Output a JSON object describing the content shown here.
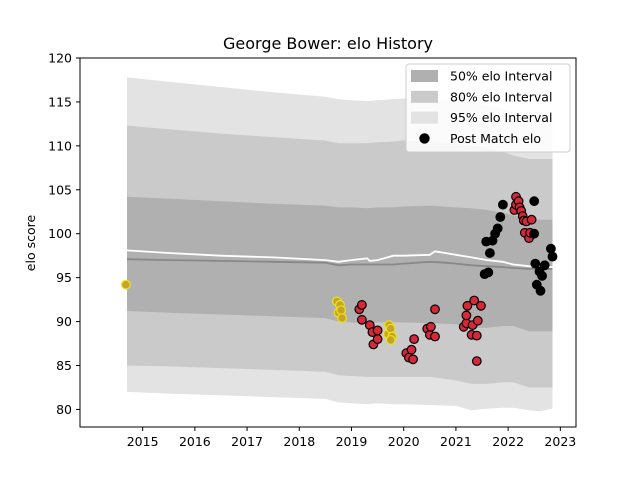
{
  "chart_data": {
    "type": "scatter",
    "title": "George Bower: elo History",
    "xlabel": "",
    "ylabel": "elo score",
    "xlim": [
      2013.8,
      2023.3
    ],
    "ylim": [
      78,
      120
    ],
    "xticks": [
      2015,
      2016,
      2017,
      2018,
      2019,
      2020,
      2021,
      2022,
      2023
    ],
    "yticks": [
      80,
      85,
      90,
      95,
      100,
      105,
      110,
      115,
      120
    ],
    "grid": false,
    "legend": {
      "placement": "top-right",
      "entries": [
        "50% elo Interval",
        "80% elo Interval",
        "95% elo Interval",
        "Post Match elo"
      ]
    },
    "colors": {
      "band50": "#b0b0b0",
      "band80": "#cacaca",
      "band95": "#e3e3e3",
      "median_line": "#888888",
      "mean_line": "#ffffff",
      "point_black": "#000000",
      "point_red": "#d62839",
      "point_yellow": "#c9a227",
      "edge_black": "#000000",
      "edge_yellow": "#e6e61e"
    },
    "series": [
      {
        "name": "50% elo Interval",
        "type": "band",
        "x": [
          2014.7,
          2015.5,
          2016.5,
          2017.5,
          2018.5,
          2018.75,
          2019.0,
          2019.3,
          2019.5,
          2019.8,
          2020.0,
          2020.5,
          2021.0,
          2021.3,
          2021.6,
          2021.9,
          2022.1,
          2022.4,
          2022.6,
          2022.85
        ],
        "lower": [
          91.2,
          91.0,
          90.8,
          90.6,
          90.4,
          90.0,
          89.9,
          89.8,
          89.9,
          89.9,
          89.9,
          89.8,
          89.7,
          89.3,
          89.3,
          89.5,
          89.5,
          88.9,
          88.9,
          88.9
        ],
        "upper": [
          104.2,
          104.0,
          103.7,
          103.4,
          103.2,
          103.0,
          103.0,
          102.9,
          103.0,
          103.0,
          103.1,
          103.2,
          103.0,
          102.9,
          102.7,
          102.4,
          102.1,
          101.6,
          101.6,
          101.6
        ]
      },
      {
        "name": "80% elo Interval",
        "type": "band",
        "x": [
          2014.7,
          2015.5,
          2016.5,
          2017.5,
          2018.5,
          2018.75,
          2019.0,
          2019.3,
          2019.5,
          2019.8,
          2020.0,
          2020.5,
          2021.0,
          2021.3,
          2021.6,
          2021.9,
          2022.1,
          2022.4,
          2022.6,
          2022.85
        ],
        "lower": [
          85.0,
          84.9,
          84.7,
          84.5,
          84.3,
          83.9,
          83.8,
          83.7,
          83.7,
          83.7,
          83.7,
          83.7,
          83.3,
          82.9,
          82.9,
          83.1,
          83.1,
          82.5,
          82.5,
          82.5
        ],
        "upper": [
          112.3,
          111.9,
          111.4,
          111.0,
          110.6,
          110.3,
          110.3,
          110.3,
          110.4,
          110.5,
          110.6,
          110.6,
          110.2,
          110.0,
          109.7,
          109.3,
          108.9,
          108.5,
          108.5,
          108.5
        ]
      },
      {
        "name": "95% elo Interval",
        "type": "band",
        "x": [
          2014.7,
          2015.5,
          2016.5,
          2017.5,
          2018.5,
          2018.75,
          2019.0,
          2019.3,
          2019.5,
          2019.8,
          2020.0,
          2020.5,
          2021.0,
          2021.3,
          2021.6,
          2021.9,
          2022.1,
          2022.4,
          2022.6,
          2022.85
        ],
        "lower": [
          82.0,
          81.8,
          81.6,
          81.4,
          81.2,
          80.8,
          80.7,
          80.6,
          80.7,
          80.6,
          80.6,
          80.5,
          80.4,
          79.9,
          80.1,
          80.2,
          80.2,
          79.9,
          79.8,
          80.1
        ],
        "upper": [
          117.8,
          117.3,
          116.7,
          116.1,
          115.6,
          115.3,
          115.2,
          115.1,
          115.2,
          115.3,
          115.4,
          115.3,
          115.1,
          114.9,
          114.6,
          114.2,
          113.8,
          113.3,
          113.3,
          113.3
        ]
      },
      {
        "name": "Median elo",
        "type": "line",
        "color": "#888888",
        "x": [
          2014.7,
          2015.5,
          2016.5,
          2017.5,
          2018.5,
          2018.75,
          2019.0,
          2019.3,
          2019.5,
          2019.8,
          2020.0,
          2020.5,
          2020.8,
          2021.0,
          2021.3,
          2021.6,
          2021.9,
          2022.1,
          2022.4,
          2022.85
        ],
        "y": [
          97.1,
          97.0,
          96.9,
          96.8,
          96.7,
          96.4,
          96.5,
          96.5,
          96.5,
          96.5,
          96.6,
          96.8,
          96.7,
          96.6,
          96.4,
          96.3,
          96.2,
          96.1,
          96.0,
          96.0
        ]
      },
      {
        "name": "Mean elo",
        "type": "line",
        "color": "#ffffff",
        "x": [
          2014.7,
          2015.5,
          2016.5,
          2017.5,
          2018.5,
          2018.75,
          2019.0,
          2019.3,
          2019.35,
          2019.5,
          2019.8,
          2020.0,
          2020.5,
          2020.6,
          2021.0,
          2021.3,
          2021.6,
          2021.9,
          2022.1,
          2022.4,
          2022.85
        ],
        "y": [
          98.1,
          97.8,
          97.5,
          97.3,
          97.0,
          96.8,
          97.0,
          97.2,
          96.9,
          97.0,
          97.5,
          97.5,
          97.6,
          98.0,
          97.6,
          97.3,
          97.0,
          96.8,
          96.5,
          96.3,
          96.2
        ]
      },
      {
        "name": "Post Match elo",
        "type": "points",
        "points": [
          {
            "x": 2014.68,
            "y": 94.2,
            "c": "yellow"
          },
          {
            "x": 2018.72,
            "y": 92.3,
            "c": "yellow"
          },
          {
            "x": 2018.75,
            "y": 91.0,
            "c": "yellow"
          },
          {
            "x": 2018.78,
            "y": 91.9,
            "c": "yellow"
          },
          {
            "x": 2018.8,
            "y": 91.3,
            "c": "yellow"
          },
          {
            "x": 2018.82,
            "y": 90.4,
            "c": "yellow"
          },
          {
            "x": 2019.15,
            "y": 91.4,
            "c": "red"
          },
          {
            "x": 2019.2,
            "y": 91.9,
            "c": "red"
          },
          {
            "x": 2019.2,
            "y": 90.2,
            "c": "red"
          },
          {
            "x": 2019.35,
            "y": 89.6,
            "c": "red"
          },
          {
            "x": 2019.4,
            "y": 88.8,
            "c": "red"
          },
          {
            "x": 2019.42,
            "y": 87.4,
            "c": "red"
          },
          {
            "x": 2019.5,
            "y": 89.0,
            "c": "red"
          },
          {
            "x": 2019.5,
            "y": 88.0,
            "c": "red"
          },
          {
            "x": 2019.7,
            "y": 88.6,
            "c": "yellow"
          },
          {
            "x": 2019.72,
            "y": 89.6,
            "c": "yellow"
          },
          {
            "x": 2019.75,
            "y": 89.2,
            "c": "yellow"
          },
          {
            "x": 2019.78,
            "y": 88.3,
            "c": "yellow"
          },
          {
            "x": 2019.75,
            "y": 87.9,
            "c": "yellow"
          },
          {
            "x": 2020.05,
            "y": 86.4,
            "c": "red"
          },
          {
            "x": 2020.1,
            "y": 85.9,
            "c": "red"
          },
          {
            "x": 2020.15,
            "y": 86.8,
            "c": "red"
          },
          {
            "x": 2020.18,
            "y": 85.7,
            "c": "red"
          },
          {
            "x": 2020.2,
            "y": 88.0,
            "c": "red"
          },
          {
            "x": 2020.45,
            "y": 89.2,
            "c": "red"
          },
          {
            "x": 2020.5,
            "y": 88.5,
            "c": "red"
          },
          {
            "x": 2020.52,
            "y": 89.4,
            "c": "red"
          },
          {
            "x": 2020.6,
            "y": 91.4,
            "c": "red"
          },
          {
            "x": 2020.6,
            "y": 88.3,
            "c": "red"
          },
          {
            "x": 2021.15,
            "y": 89.4,
            "c": "red"
          },
          {
            "x": 2021.2,
            "y": 89.8,
            "c": "red"
          },
          {
            "x": 2021.2,
            "y": 90.7,
            "c": "red"
          },
          {
            "x": 2021.22,
            "y": 91.8,
            "c": "red"
          },
          {
            "x": 2021.3,
            "y": 88.5,
            "c": "red"
          },
          {
            "x": 2021.32,
            "y": 89.6,
            "c": "red"
          },
          {
            "x": 2021.35,
            "y": 92.4,
            "c": "red"
          },
          {
            "x": 2021.4,
            "y": 88.4,
            "c": "red"
          },
          {
            "x": 2021.42,
            "y": 90.1,
            "c": "red"
          },
          {
            "x": 2021.48,
            "y": 91.8,
            "c": "red"
          },
          {
            "x": 2021.4,
            "y": 85.5,
            "c": "red"
          },
          {
            "x": 2021.55,
            "y": 95.4,
            "c": "black"
          },
          {
            "x": 2021.58,
            "y": 99.1,
            "c": "black"
          },
          {
            "x": 2021.62,
            "y": 95.6,
            "c": "black"
          },
          {
            "x": 2021.65,
            "y": 97.8,
            "c": "black"
          },
          {
            "x": 2021.7,
            "y": 99.2,
            "c": "black"
          },
          {
            "x": 2021.75,
            "y": 100.0,
            "c": "black"
          },
          {
            "x": 2021.8,
            "y": 100.6,
            "c": "black"
          },
          {
            "x": 2021.85,
            "y": 101.9,
            "c": "black"
          },
          {
            "x": 2021.9,
            "y": 103.3,
            "c": "black"
          },
          {
            "x": 2022.12,
            "y": 102.7,
            "c": "red"
          },
          {
            "x": 2022.15,
            "y": 103.3,
            "c": "red"
          },
          {
            "x": 2022.15,
            "y": 104.2,
            "c": "red"
          },
          {
            "x": 2022.2,
            "y": 103.7,
            "c": "red"
          },
          {
            "x": 2022.22,
            "y": 103.0,
            "c": "red"
          },
          {
            "x": 2022.25,
            "y": 102.6,
            "c": "red"
          },
          {
            "x": 2022.28,
            "y": 102.0,
            "c": "red"
          },
          {
            "x": 2022.3,
            "y": 101.5,
            "c": "red"
          },
          {
            "x": 2022.32,
            "y": 100.1,
            "c": "red"
          },
          {
            "x": 2022.35,
            "y": 101.4,
            "c": "red"
          },
          {
            "x": 2022.4,
            "y": 99.5,
            "c": "red"
          },
          {
            "x": 2022.42,
            "y": 100.1,
            "c": "red"
          },
          {
            "x": 2022.45,
            "y": 101.6,
            "c": "red"
          },
          {
            "x": 2022.5,
            "y": 100.0,
            "c": "black"
          },
          {
            "x": 2022.5,
            "y": 103.7,
            "c": "black"
          },
          {
            "x": 2022.52,
            "y": 96.6,
            "c": "black"
          },
          {
            "x": 2022.55,
            "y": 94.2,
            "c": "black"
          },
          {
            "x": 2022.6,
            "y": 95.7,
            "c": "black"
          },
          {
            "x": 2022.62,
            "y": 93.5,
            "c": "black"
          },
          {
            "x": 2022.65,
            "y": 95.2,
            "c": "black"
          },
          {
            "x": 2022.7,
            "y": 96.4,
            "c": "black"
          },
          {
            "x": 2022.82,
            "y": 98.3,
            "c": "black"
          },
          {
            "x": 2022.85,
            "y": 97.4,
            "c": "black"
          }
        ]
      }
    ]
  }
}
